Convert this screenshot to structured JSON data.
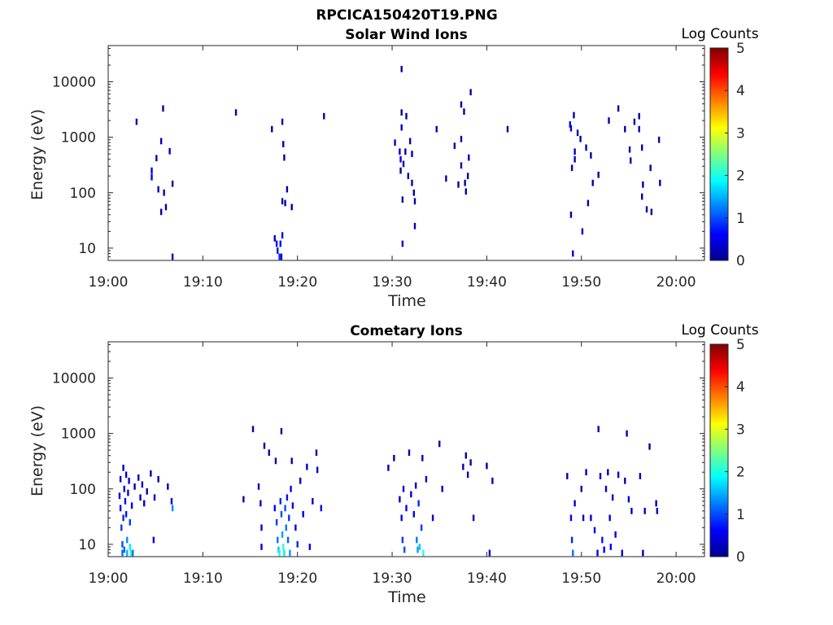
{
  "figure": {
    "title": "RPCICA150420T19.PNG"
  },
  "chart_data": [
    {
      "type": "heatmap",
      "title": "Solar Wind Ions",
      "xlabel": "Time",
      "ylabel": "Energy (eV)",
      "x_ticks": [
        "19:00",
        "19:10",
        "19:20",
        "19:30",
        "19:40",
        "19:50",
        "20:00"
      ],
      "x_range_minutes": [
        0,
        63
      ],
      "y_scale": "log",
      "y_ticks": [
        10,
        100,
        1000,
        10000
      ],
      "y_range": [
        6,
        45000
      ],
      "colorbar": {
        "label": "Log Counts",
        "range": [
          0,
          5
        ],
        "ticks": [
          0,
          1,
          2,
          3,
          4,
          5
        ],
        "colormap": "jet"
      },
      "points": [
        [
          3.0,
          1900,
          0.2
        ],
        [
          4.6,
          250,
          0.5
        ],
        [
          4.6,
          190,
          0.6
        ],
        [
          5.1,
          420,
          0.3
        ],
        [
          5.3,
          115,
          0.2
        ],
        [
          5.6,
          850,
          0.2
        ],
        [
          5.6,
          45,
          0.2
        ],
        [
          5.8,
          3300,
          0.2
        ],
        [
          5.9,
          100,
          0.2
        ],
        [
          6.1,
          55,
          0.2
        ],
        [
          6.5,
          560,
          0.3
        ],
        [
          6.8,
          145,
          0.2
        ],
        [
          6.8,
          7,
          0.3
        ],
        [
          13.5,
          2800,
          0.2
        ],
        [
          17.3,
          1400,
          0.2
        ],
        [
          17.6,
          15,
          0.4
        ],
        [
          17.8,
          12,
          0.6
        ],
        [
          17.9,
          9,
          0.7
        ],
        [
          18.1,
          7,
          0.8
        ],
        [
          18.2,
          12,
          0.6
        ],
        [
          18.3,
          7,
          0.5
        ],
        [
          18.4,
          17,
          0.5
        ],
        [
          18.4,
          70,
          0.2
        ],
        [
          18.4,
          1900,
          0.3
        ],
        [
          18.5,
          750,
          0.3
        ],
        [
          18.6,
          430,
          0.2
        ],
        [
          18.7,
          65,
          0.2
        ],
        [
          18.9,
          115,
          0.2
        ],
        [
          19.4,
          55,
          0.2
        ],
        [
          22.8,
          2400,
          0.2
        ],
        [
          30.3,
          800,
          0.3
        ],
        [
          30.8,
          550,
          0.4
        ],
        [
          30.9,
          400,
          0.5
        ],
        [
          31.0,
          1500,
          0.4
        ],
        [
          31.0,
          17000,
          0.2
        ],
        [
          31.0,
          2800,
          0.2
        ],
        [
          30.9,
          250,
          0.2
        ],
        [
          31.1,
          75,
          0.2
        ],
        [
          31.1,
          12,
          0.4
        ],
        [
          31.2,
          330,
          0.3
        ],
        [
          31.4,
          550,
          0.2
        ],
        [
          31.5,
          2400,
          0.2
        ],
        [
          31.7,
          200,
          0.2
        ],
        [
          31.9,
          850,
          0.2
        ],
        [
          32.1,
          500,
          0.2
        ],
        [
          32.1,
          150,
          0.2
        ],
        [
          32.3,
          100,
          0.2
        ],
        [
          32.4,
          70,
          0.2
        ],
        [
          32.4,
          25,
          0.3
        ],
        [
          34.7,
          1400,
          0.2
        ],
        [
          35.7,
          180,
          0.2
        ],
        [
          36.6,
          700,
          0.2
        ],
        [
          37.0,
          140,
          0.2
        ],
        [
          37.3,
          3900,
          0.2
        ],
        [
          37.3,
          930,
          0.2
        ],
        [
          37.3,
          310,
          0.2
        ],
        [
          37.6,
          2900,
          0.2
        ],
        [
          37.7,
          150,
          0.2
        ],
        [
          37.8,
          105,
          0.2
        ],
        [
          38.0,
          200,
          0.2
        ],
        [
          38.1,
          430,
          0.3
        ],
        [
          38.3,
          6500,
          0.2
        ],
        [
          42.2,
          1400,
          0.2
        ],
        [
          48.8,
          1700,
          0.5
        ],
        [
          48.9,
          1450,
          0.5
        ],
        [
          48.9,
          40,
          0.2
        ],
        [
          49.0,
          280,
          0.3
        ],
        [
          49.1,
          8,
          0.5
        ],
        [
          49.2,
          2500,
          0.2
        ],
        [
          49.3,
          550,
          0.3
        ],
        [
          49.3,
          400,
          0.3
        ],
        [
          49.6,
          1200,
          0.2
        ],
        [
          49.9,
          930,
          0.2
        ],
        [
          50.1,
          20,
          0.3
        ],
        [
          50.5,
          650,
          0.3
        ],
        [
          50.7,
          65,
          0.2
        ],
        [
          51.0,
          470,
          0.2
        ],
        [
          51.2,
          150,
          0.2
        ],
        [
          51.8,
          210,
          0.2
        ],
        [
          52.9,
          2000,
          0.2
        ],
        [
          53.9,
          3300,
          0.2
        ],
        [
          54.6,
          1400,
          0.2
        ],
        [
          55.1,
          600,
          0.3
        ],
        [
          55.2,
          380,
          0.3
        ],
        [
          55.6,
          1900,
          0.2
        ],
        [
          56.1,
          1400,
          0.3
        ],
        [
          56.1,
          2400,
          0.2
        ],
        [
          56.4,
          650,
          0.3
        ],
        [
          56.5,
          140,
          0.2
        ],
        [
          56.4,
          85,
          0.2
        ],
        [
          56.9,
          50,
          0.2
        ],
        [
          57.4,
          45,
          0.2
        ],
        [
          57.3,
          280,
          0.2
        ],
        [
          58.2,
          900,
          0.2
        ],
        [
          58.3,
          150,
          0.2
        ]
      ]
    },
    {
      "type": "heatmap",
      "title": "Cometary Ions",
      "xlabel": "Time",
      "ylabel": "Energy (eV)",
      "x_ticks": [
        "19:00",
        "19:10",
        "19:20",
        "19:30",
        "19:40",
        "19:50",
        "20:00"
      ],
      "x_range_minutes": [
        0,
        63
      ],
      "y_scale": "log",
      "y_ticks": [
        10,
        100,
        1000,
        10000
      ],
      "y_range": [
        6,
        45000
      ],
      "colorbar": {
        "label": "Log Counts",
        "range": [
          0,
          5
        ],
        "ticks": [
          0,
          1,
          2,
          3,
          4,
          5
        ],
        "colormap": "jet"
      },
      "points": [
        [
          1.2,
          75,
          0.4
        ],
        [
          1.3,
          45,
          0.5
        ],
        [
          1.3,
          150,
          0.3
        ],
        [
          1.4,
          20,
          0.9
        ],
        [
          1.5,
          10,
          1.0
        ],
        [
          1.5,
          7,
          1.2
        ],
        [
          1.6,
          30,
          0.8
        ],
        [
          1.6,
          240,
          0.3
        ],
        [
          1.7,
          100,
          0.5
        ],
        [
          1.7,
          8,
          1.1
        ],
        [
          1.8,
          60,
          0.6
        ],
        [
          1.9,
          35,
          0.7
        ],
        [
          1.9,
          180,
          0.4
        ],
        [
          2.0,
          12,
          1.3
        ],
        [
          2.0,
          7,
          1.5
        ],
        [
          2.1,
          85,
          0.5
        ],
        [
          2.2,
          140,
          0.4
        ],
        [
          2.3,
          25,
          0.9
        ],
        [
          2.3,
          9,
          1.8
        ],
        [
          2.4,
          7,
          2.0
        ],
        [
          2.5,
          50,
          0.5
        ],
        [
          2.6,
          7,
          1.2
        ],
        [
          2.8,
          110,
          0.3
        ],
        [
          3.2,
          160,
          0.3
        ],
        [
          3.4,
          70,
          0.4
        ],
        [
          3.6,
          120,
          0.3
        ],
        [
          3.8,
          55,
          0.4
        ],
        [
          4.1,
          90,
          0.3
        ],
        [
          4.5,
          190,
          0.3
        ],
        [
          4.8,
          12,
          0.5
        ],
        [
          4.9,
          70,
          0.4
        ],
        [
          5.3,
          150,
          0.2
        ],
        [
          6.3,
          110,
          0.3
        ],
        [
          6.7,
          60,
          0.4
        ],
        [
          6.8,
          45,
          1.3
        ],
        [
          14.3,
          65,
          0.3
        ],
        [
          15.9,
          110,
          0.3
        ],
        [
          16.1,
          55,
          0.4
        ],
        [
          16.2,
          20,
          0.6
        ],
        [
          16.2,
          9,
          0.5
        ],
        [
          16.5,
          600,
          0.2
        ],
        [
          17.0,
          450,
          0.2
        ],
        [
          17.6,
          45,
          0.6
        ],
        [
          17.8,
          25,
          0.9
        ],
        [
          17.9,
          12,
          1.2
        ],
        [
          18.0,
          8,
          1.6
        ],
        [
          18.1,
          7,
          2.0
        ],
        [
          18.2,
          60,
          0.8
        ],
        [
          18.3,
          35,
          1.0
        ],
        [
          18.4,
          15,
          1.4
        ],
        [
          18.5,
          9,
          2.1
        ],
        [
          18.6,
          7,
          1.8
        ],
        [
          18.7,
          45,
          1.0
        ],
        [
          18.8,
          20,
          1.2
        ],
        [
          18.9,
          70,
          0.7
        ],
        [
          19.0,
          12,
          1.1
        ],
        [
          19.1,
          30,
          0.9
        ],
        [
          19.2,
          7,
          1.4
        ],
        [
          19.3,
          100,
          0.5
        ],
        [
          19.4,
          320,
          0.3
        ],
        [
          19.5,
          50,
          0.6
        ],
        [
          19.8,
          20,
          0.6
        ],
        [
          20.0,
          10,
          0.8
        ],
        [
          20.3,
          140,
          0.3
        ],
        [
          20.6,
          35,
          0.4
        ],
        [
          21.0,
          250,
          0.3
        ],
        [
          21.3,
          9,
          0.6
        ],
        [
          21.6,
          60,
          0.4
        ],
        [
          22.0,
          450,
          0.2
        ],
        [
          22.1,
          220,
          0.3
        ],
        [
          22.5,
          45,
          0.5
        ],
        [
          15.3,
          1200,
          0.2
        ],
        [
          17.7,
          320,
          0.3
        ],
        [
          18.3,
          1100,
          0.2
        ],
        [
          29.6,
          240,
          0.3
        ],
        [
          30.2,
          360,
          0.2
        ],
        [
          30.8,
          65,
          0.4
        ],
        [
          31.0,
          30,
          0.6
        ],
        [
          31.1,
          12,
          0.9
        ],
        [
          31.2,
          100,
          0.5
        ],
        [
          31.3,
          8,
          1.0
        ],
        [
          31.5,
          45,
          0.5
        ],
        [
          31.8,
          450,
          0.2
        ],
        [
          32.0,
          80,
          0.4
        ],
        [
          32.3,
          35,
          0.6
        ],
        [
          32.5,
          115,
          0.4
        ],
        [
          32.6,
          12,
          1.2
        ],
        [
          32.7,
          8,
          1.4
        ],
        [
          32.8,
          55,
          0.8
        ],
        [
          32.9,
          9,
          1.6
        ],
        [
          33.1,
          20,
          0.9
        ],
        [
          33.3,
          7,
          2.0
        ],
        [
          33.2,
          360,
          0.3
        ],
        [
          33.6,
          150,
          0.3
        ],
        [
          34.3,
          30,
          0.4
        ],
        [
          35.0,
          650,
          0.2
        ],
        [
          35.3,
          100,
          0.3
        ],
        [
          37.5,
          250,
          0.3
        ],
        [
          37.8,
          400,
          0.2
        ],
        [
          38.0,
          180,
          0.3
        ],
        [
          38.3,
          300,
          0.3
        ],
        [
          38.6,
          30,
          0.4
        ],
        [
          40.0,
          260,
          0.2
        ],
        [
          40.3,
          7,
          0.4
        ],
        [
          40.6,
          140,
          0.3
        ],
        [
          48.5,
          170,
          0.3
        ],
        [
          48.9,
          30,
          0.6
        ],
        [
          49.0,
          12,
          0.8
        ],
        [
          49.1,
          7,
          1.2
        ],
        [
          49.3,
          55,
          0.4
        ],
        [
          50.0,
          100,
          0.3
        ],
        [
          50.2,
          30,
          0.4
        ],
        [
          50.5,
          200,
          0.3
        ],
        [
          51.0,
          30,
          0.4
        ],
        [
          51.4,
          18,
          0.5
        ],
        [
          51.7,
          7,
          0.6
        ],
        [
          51.8,
          1200,
          0.2
        ],
        [
          52.0,
          170,
          0.3
        ],
        [
          52.2,
          12,
          0.7
        ],
        [
          52.4,
          8,
          0.6
        ],
        [
          52.6,
          100,
          0.3
        ],
        [
          52.8,
          200,
          0.2
        ],
        [
          53.0,
          30,
          0.4
        ],
        [
          53.1,
          9,
          0.6
        ],
        [
          53.3,
          70,
          0.3
        ],
        [
          53.6,
          15,
          0.5
        ],
        [
          53.9,
          180,
          0.3
        ],
        [
          54.3,
          7,
          0.4
        ],
        [
          54.6,
          140,
          0.3
        ],
        [
          54.8,
          1000,
          0.2
        ],
        [
          55.0,
          65,
          0.3
        ],
        [
          55.3,
          40,
          0.3
        ],
        [
          56.2,
          170,
          0.3
        ],
        [
          56.5,
          7,
          0.3
        ],
        [
          56.7,
          40,
          0.3
        ],
        [
          57.2,
          580,
          0.2
        ],
        [
          57.9,
          55,
          0.3
        ],
        [
          58.0,
          40,
          0.3
        ]
      ]
    }
  ]
}
